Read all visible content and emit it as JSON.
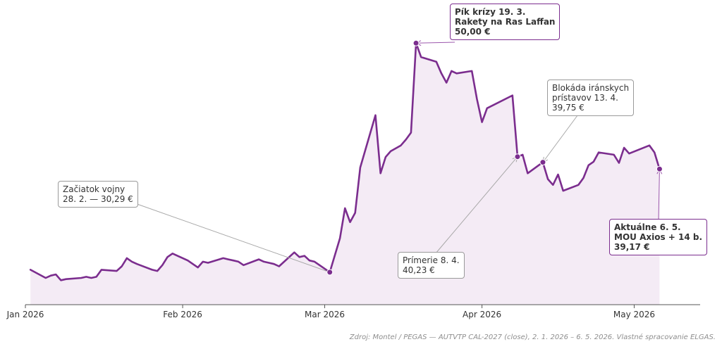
{
  "chart_data": {
    "type": "area",
    "title": "",
    "xlabel": "",
    "ylabel": "",
    "series": [
      {
        "values": [
          {
            "x": "2026-01-02",
            "y": 30.5
          },
          {
            "x": "2026-01-05",
            "y": 29.8
          },
          {
            "x": "2026-01-06",
            "y": 30.0
          },
          {
            "x": "2026-01-07",
            "y": 30.1
          },
          {
            "x": "2026-01-08",
            "y": 29.6
          },
          {
            "x": "2026-01-09",
            "y": 29.7
          },
          {
            "x": "2026-01-12",
            "y": 29.8
          },
          {
            "x": "2026-01-13",
            "y": 29.9
          },
          {
            "x": "2026-01-14",
            "y": 29.8
          },
          {
            "x": "2026-01-15",
            "y": 29.9
          },
          {
            "x": "2026-01-16",
            "y": 30.5
          },
          {
            "x": "2026-01-19",
            "y": 30.4
          },
          {
            "x": "2026-01-20",
            "y": 30.8
          },
          {
            "x": "2026-01-21",
            "y": 31.5
          },
          {
            "x": "2026-01-22",
            "y": 31.2
          },
          {
            "x": "2026-01-23",
            "y": 31.0
          },
          {
            "x": "2026-01-26",
            "y": 30.5
          },
          {
            "x": "2026-01-27",
            "y": 30.4
          },
          {
            "x": "2026-01-28",
            "y": 30.9
          },
          {
            "x": "2026-01-29",
            "y": 31.6
          },
          {
            "x": "2026-01-30",
            "y": 31.9
          },
          {
            "x": "2026-02-02",
            "y": 31.3
          },
          {
            "x": "2026-02-03",
            "y": 31.0
          },
          {
            "x": "2026-02-04",
            "y": 30.7
          },
          {
            "x": "2026-02-05",
            "y": 31.2
          },
          {
            "x": "2026-02-06",
            "y": 31.1
          },
          {
            "x": "2026-02-09",
            "y": 31.5
          },
          {
            "x": "2026-02-10",
            "y": 31.4
          },
          {
            "x": "2026-02-11",
            "y": 31.3
          },
          {
            "x": "2026-02-12",
            "y": 31.2
          },
          {
            "x": "2026-02-13",
            "y": 30.9
          },
          {
            "x": "2026-02-16",
            "y": 31.4
          },
          {
            "x": "2026-02-17",
            "y": 31.2
          },
          {
            "x": "2026-02-18",
            "y": 31.1
          },
          {
            "x": "2026-02-19",
            "y": 31.0
          },
          {
            "x": "2026-02-20",
            "y": 30.8
          },
          {
            "x": "2026-02-23",
            "y": 32.0
          },
          {
            "x": "2026-02-24",
            "y": 31.6
          },
          {
            "x": "2026-02-25",
            "y": 31.7
          },
          {
            "x": "2026-02-26",
            "y": 31.3
          },
          {
            "x": "2026-02-27",
            "y": 31.2
          },
          {
            "x": "2026-03-02",
            "y": 30.29
          },
          {
            "x": "2026-03-04",
            "y": 33.2
          },
          {
            "x": "2026-03-05",
            "y": 35.8
          },
          {
            "x": "2026-03-06",
            "y": 34.6
          },
          {
            "x": "2026-03-07",
            "y": 35.4
          },
          {
            "x": "2026-03-08",
            "y": 39.3
          },
          {
            "x": "2026-03-11",
            "y": 43.8
          },
          {
            "x": "2026-03-12",
            "y": 38.8
          },
          {
            "x": "2026-03-13",
            "y": 40.2
          },
          {
            "x": "2026-03-14",
            "y": 40.7
          },
          {
            "x": "2026-03-16",
            "y": 41.2
          },
          {
            "x": "2026-03-17",
            "y": 41.7
          },
          {
            "x": "2026-03-18",
            "y": 42.3
          },
          {
            "x": "2026-03-19",
            "y": 50.0
          },
          {
            "x": "2026-03-20",
            "y": 48.8
          },
          {
            "x": "2026-03-23",
            "y": 48.4
          },
          {
            "x": "2026-03-24",
            "y": 47.4
          },
          {
            "x": "2026-03-25",
            "y": 46.6
          },
          {
            "x": "2026-03-26",
            "y": 47.6
          },
          {
            "x": "2026-03-27",
            "y": 47.4
          },
          {
            "x": "2026-03-30",
            "y": 47.6
          },
          {
            "x": "2026-03-31",
            "y": 45.2
          },
          {
            "x": "2026-04-01",
            "y": 43.2
          },
          {
            "x": "2026-04-02",
            "y": 44.4
          },
          {
            "x": "2026-04-07",
            "y": 45.5
          },
          {
            "x": "2026-04-08",
            "y": 40.23
          },
          {
            "x": "2026-04-09",
            "y": 40.4
          },
          {
            "x": "2026-04-10",
            "y": 38.8
          },
          {
            "x": "2026-04-13",
            "y": 39.75
          },
          {
            "x": "2026-04-14",
            "y": 38.3
          },
          {
            "x": "2026-04-15",
            "y": 37.8
          },
          {
            "x": "2026-04-16",
            "y": 38.7
          },
          {
            "x": "2026-04-17",
            "y": 37.3
          },
          {
            "x": "2026-04-20",
            "y": 37.8
          },
          {
            "x": "2026-04-21",
            "y": 38.4
          },
          {
            "x": "2026-04-22",
            "y": 39.5
          },
          {
            "x": "2026-04-23",
            "y": 39.8
          },
          {
            "x": "2026-04-24",
            "y": 40.6
          },
          {
            "x": "2026-04-27",
            "y": 40.4
          },
          {
            "x": "2026-04-28",
            "y": 39.7
          },
          {
            "x": "2026-04-29",
            "y": 41.0
          },
          {
            "x": "2026-04-30",
            "y": 40.5
          },
          {
            "x": "2026-05-04",
            "y": 41.2
          },
          {
            "x": "2026-05-05",
            "y": 40.6
          },
          {
            "x": "2026-05-06",
            "y": 39.17
          }
        ]
      }
    ],
    "x_ticks": [
      {
        "date": "2026-01-01",
        "label": "Jan 2026"
      },
      {
        "date": "2026-02-01",
        "label": "Feb 2026"
      },
      {
        "date": "2026-03-01",
        "label": "Mar 2026"
      },
      {
        "date": "2026-04-01",
        "label": "Apr 2026"
      },
      {
        "date": "2026-05-01",
        "label": "May 2026"
      }
    ],
    "xlim": [
      "2026-01-01",
      "2026-05-14"
    ],
    "ylim": [
      27.5,
      52.5
    ],
    "grid": false,
    "annotations": [
      {
        "id": "war-start",
        "date": "2026-03-02",
        "value": 30.29,
        "lines": [
          "Začiatok vojny",
          "28. 2. — 30,29 €"
        ],
        "bold": false
      },
      {
        "id": "peak",
        "date": "2026-03-19",
        "value": 50.0,
        "lines": [
          "Pík krízy 19. 3.",
          "Rakety na Ras Laffan",
          "50,00 €"
        ],
        "bold": true
      },
      {
        "id": "ceasefire",
        "date": "2026-04-08",
        "value": 40.23,
        "lines": [
          "Prímerie 8. 4.",
          "40,23 €"
        ],
        "bold": false
      },
      {
        "id": "blockade",
        "date": "2026-04-13",
        "value": 39.75,
        "lines": [
          "Blokáda iránskych",
          "prístavov 13. 4.",
          "39,75 €"
        ],
        "bold": false
      },
      {
        "id": "current",
        "date": "2026-05-06",
        "value": 39.17,
        "lines": [
          "Aktuálne 6. 5.",
          "MOU Axios + 14 b.",
          "39,17 €"
        ],
        "bold": true
      }
    ]
  },
  "colors": {
    "line": "#7b2d8e",
    "fill": "#f4ebf5",
    "axis": "#555555",
    "leader_plain": "#a8a8a8",
    "leader_accent": "#9c58ad"
  },
  "source_note": "Zdroj: Montel / PEGAS — AUTVTP CAL-2027 (close), 2. 1. 2026 – 6. 5. 2026. Vlastné spracovanie ELGAS."
}
